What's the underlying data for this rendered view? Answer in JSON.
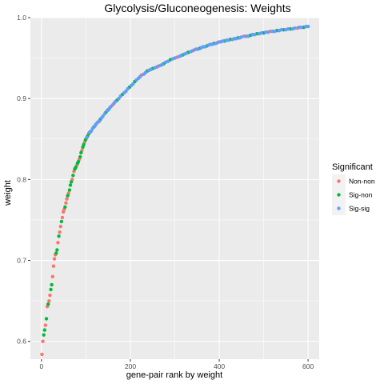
{
  "chart_data": {
    "type": "scatter",
    "title": "Glycolysis/Gluconeogenesis: Weights",
    "xlabel": "gene-pair rank by weight",
    "ylabel": "weight",
    "xlim": [
      -25,
      625
    ],
    "ylim": [
      0.578,
      1.0
    ],
    "x_ticks": [
      0,
      200,
      400,
      600
    ],
    "x_tick_labels": [
      "0",
      "200",
      "400",
      "600"
    ],
    "y_ticks": [
      0.6,
      0.7,
      0.8,
      0.9,
      1.0
    ],
    "y_tick_labels": [
      "0.6",
      "0.7",
      "0.8",
      "0.9",
      "1.0"
    ],
    "grid": true,
    "legend": {
      "title": "Significant",
      "position": "right"
    },
    "colors": {
      "panel": "#ebebeb",
      "grid": "#ffffff",
      "axis_text": "#4d4d4d",
      "text": "#000000"
    },
    "series": [
      {
        "name": "Non-non",
        "color": "#F8766D",
        "points": [
          [
            1,
            0.584
          ],
          [
            3,
            0.6
          ],
          [
            9,
            0.62
          ],
          [
            13,
            0.643
          ],
          [
            17,
            0.65
          ],
          [
            19,
            0.657
          ],
          [
            25,
            0.68
          ],
          [
            27,
            0.693
          ],
          [
            29,
            0.702
          ],
          [
            31,
            0.707
          ],
          [
            37,
            0.722
          ],
          [
            41,
            0.735
          ],
          [
            43,
            0.742
          ],
          [
            47,
            0.753
          ],
          [
            49,
            0.76
          ],
          [
            51,
            0.763
          ],
          [
            55,
            0.771
          ],
          [
            57,
            0.776
          ],
          [
            61,
            0.783
          ],
          [
            69,
            0.8
          ],
          [
            73,
            0.81
          ],
          [
            79,
            0.817
          ],
          [
            85,
            0.825
          ],
          [
            91,
            0.836
          ],
          [
            97,
            0.846
          ],
          [
            101,
            0.851
          ],
          [
            105,
            0.855
          ],
          [
            125,
            0.87
          ],
          [
            160,
            0.892
          ],
          [
            225,
            0.929
          ],
          [
            263,
            0.94
          ],
          [
            305,
            0.951
          ],
          [
            344,
            0.96
          ],
          [
            400,
            0.97
          ],
          [
            456,
            0.977
          ],
          [
            515,
            0.983
          ],
          [
            576,
            0.987
          ]
        ]
      },
      {
        "name": "Sig-non",
        "color": "#00BA38",
        "points": [
          [
            5,
            0.608
          ],
          [
            7,
            0.614
          ],
          [
            11,
            0.628
          ],
          [
            15,
            0.646
          ],
          [
            21,
            0.664
          ],
          [
            23,
            0.67
          ],
          [
            33,
            0.709
          ],
          [
            35,
            0.713
          ],
          [
            39,
            0.73
          ],
          [
            45,
            0.748
          ],
          [
            53,
            0.766
          ],
          [
            59,
            0.78
          ],
          [
            63,
            0.787
          ],
          [
            65,
            0.793
          ],
          [
            67,
            0.797
          ],
          [
            71,
            0.805
          ],
          [
            75,
            0.813
          ],
          [
            77,
            0.815
          ],
          [
            81,
            0.82
          ],
          [
            83,
            0.822
          ],
          [
            87,
            0.828
          ],
          [
            89,
            0.833
          ],
          [
            93,
            0.84
          ],
          [
            95,
            0.843
          ],
          [
            99,
            0.849
          ],
          [
            103,
            0.853
          ],
          [
            107,
            0.857
          ],
          [
            110,
            0.859
          ],
          [
            118,
            0.865
          ],
          [
            132,
            0.874
          ],
          [
            145,
            0.883
          ],
          [
            150,
            0.886
          ],
          [
            170,
            0.898
          ],
          [
            182,
            0.905
          ],
          [
            198,
            0.914
          ],
          [
            210,
            0.921
          ],
          [
            238,
            0.934
          ],
          [
            250,
            0.937
          ],
          [
            275,
            0.943
          ],
          [
            290,
            0.948
          ],
          [
            318,
            0.954
          ],
          [
            330,
            0.957
          ],
          [
            356,
            0.962
          ],
          [
            372,
            0.965
          ],
          [
            388,
            0.968
          ],
          [
            412,
            0.971
          ],
          [
            425,
            0.973
          ],
          [
            442,
            0.975
          ],
          [
            470,
            0.978
          ],
          [
            485,
            0.98
          ],
          [
            500,
            0.981
          ],
          [
            530,
            0.984
          ],
          [
            545,
            0.985
          ],
          [
            560,
            0.986
          ],
          [
            590,
            0.988
          ]
        ]
      },
      {
        "name": "Sig-sig",
        "color": "#619CFF",
        "points": [
          [
            102,
            0.852
          ],
          [
            108,
            0.858
          ],
          [
            112,
            0.86
          ],
          [
            115,
            0.863
          ],
          [
            120,
            0.866
          ],
          [
            122,
            0.868
          ],
          [
            127,
            0.871
          ],
          [
            130,
            0.872
          ],
          [
            135,
            0.876
          ],
          [
            138,
            0.878
          ],
          [
            142,
            0.881
          ],
          [
            148,
            0.885
          ],
          [
            153,
            0.888
          ],
          [
            156,
            0.89
          ],
          [
            163,
            0.894
          ],
          [
            166,
            0.896
          ],
          [
            174,
            0.9
          ],
          [
            178,
            0.903
          ],
          [
            186,
            0.907
          ],
          [
            190,
            0.909
          ],
          [
            194,
            0.912
          ],
          [
            202,
            0.916
          ],
          [
            206,
            0.918
          ],
          [
            214,
            0.923
          ],
          [
            218,
            0.925
          ],
          [
            222,
            0.927
          ],
          [
            230,
            0.93
          ],
          [
            234,
            0.932
          ],
          [
            242,
            0.935
          ],
          [
            246,
            0.936
          ],
          [
            255,
            0.938
          ],
          [
            260,
            0.939
          ],
          [
            268,
            0.941
          ],
          [
            272,
            0.942
          ],
          [
            280,
            0.945
          ],
          [
            285,
            0.946
          ],
          [
            295,
            0.949
          ],
          [
            300,
            0.95
          ],
          [
            310,
            0.952
          ],
          [
            314,
            0.953
          ],
          [
            322,
            0.955
          ],
          [
            326,
            0.956
          ],
          [
            336,
            0.958
          ],
          [
            340,
            0.959
          ],
          [
            348,
            0.961
          ],
          [
            352,
            0.961
          ],
          [
            360,
            0.963
          ],
          [
            364,
            0.964
          ],
          [
            368,
            0.964
          ],
          [
            376,
            0.966
          ],
          [
            380,
            0.967
          ],
          [
            384,
            0.967
          ],
          [
            392,
            0.968
          ],
          [
            396,
            0.969
          ],
          [
            404,
            0.97
          ],
          [
            408,
            0.971
          ],
          [
            416,
            0.972
          ],
          [
            420,
            0.972
          ],
          [
            430,
            0.973
          ],
          [
            434,
            0.974
          ],
          [
            438,
            0.974
          ],
          [
            446,
            0.975
          ],
          [
            450,
            0.976
          ],
          [
            460,
            0.977
          ],
          [
            465,
            0.977
          ],
          [
            475,
            0.979
          ],
          [
            480,
            0.979
          ],
          [
            490,
            0.98
          ],
          [
            495,
            0.981
          ],
          [
            505,
            0.982
          ],
          [
            510,
            0.982
          ],
          [
            520,
            0.983
          ],
          [
            525,
            0.983
          ],
          [
            535,
            0.984
          ],
          [
            540,
            0.985
          ],
          [
            550,
            0.985
          ],
          [
            555,
            0.986
          ],
          [
            565,
            0.986
          ],
          [
            570,
            0.987
          ],
          [
            580,
            0.988
          ],
          [
            585,
            0.988
          ],
          [
            595,
            0.989
          ],
          [
            600,
            0.989
          ]
        ]
      }
    ]
  }
}
